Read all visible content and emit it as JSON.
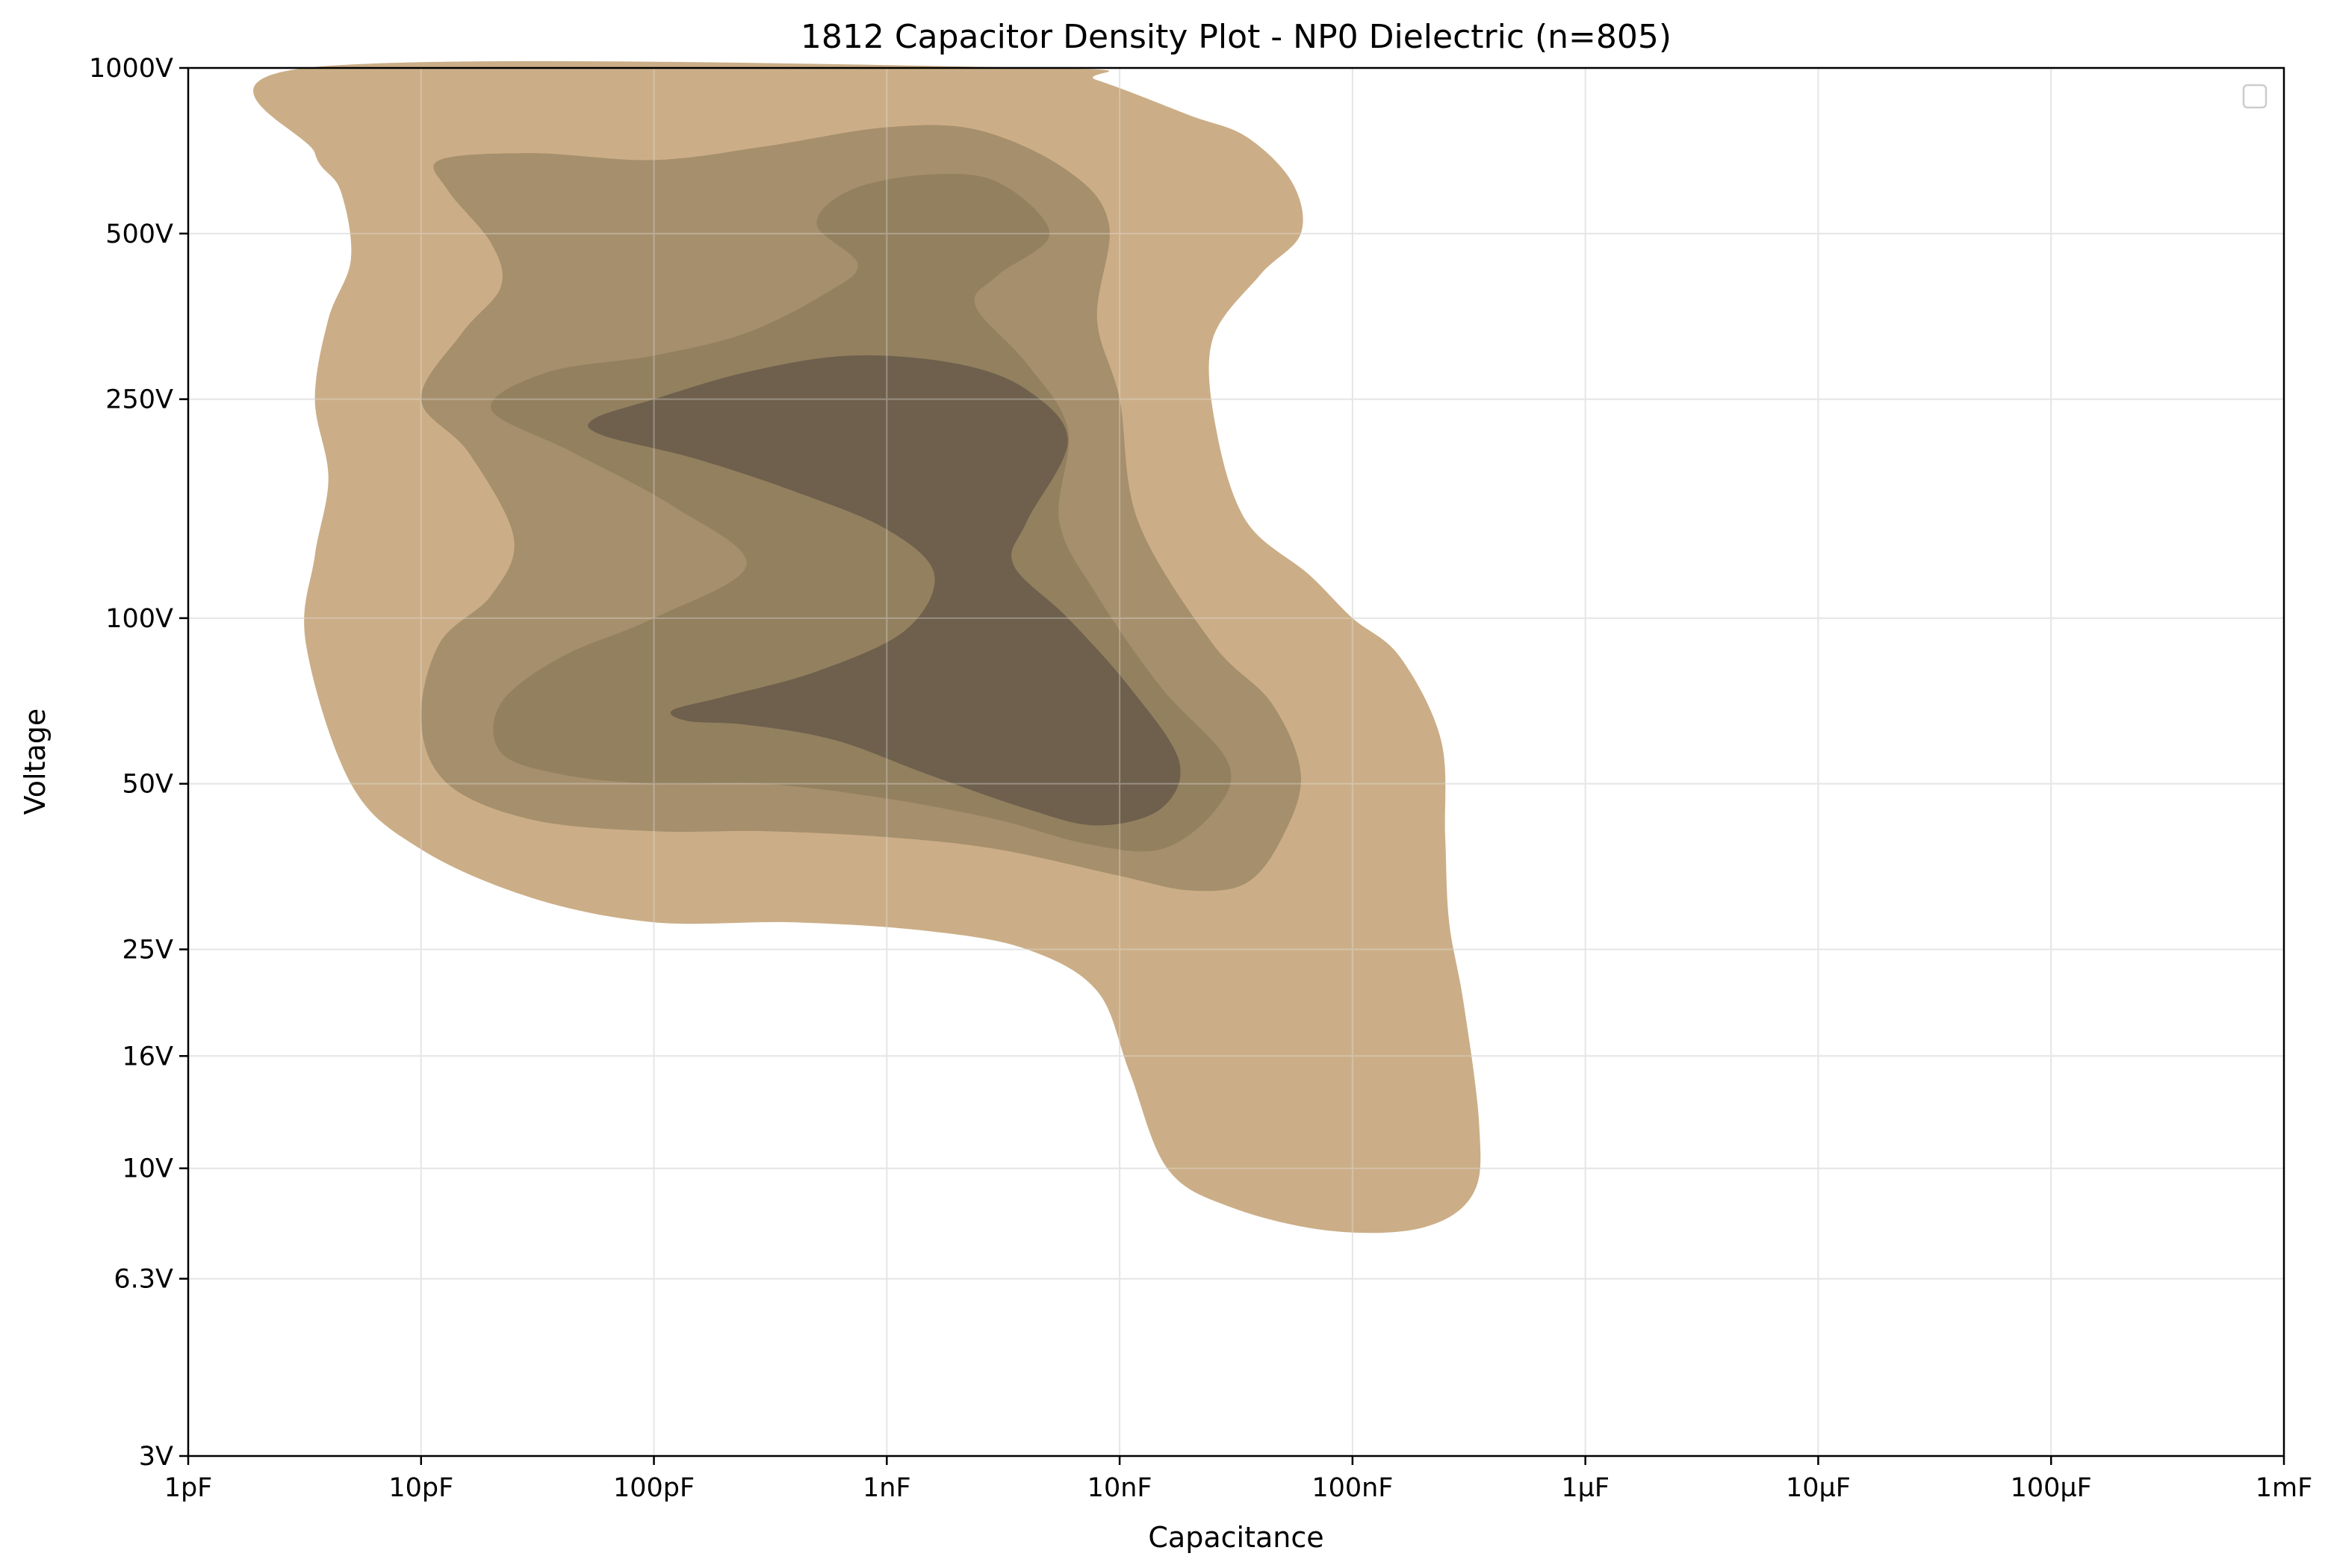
{
  "chart_data": {
    "type": "contour",
    "title": "1812 Capacitor Density Plot - NP0 Dielectric (n=805)",
    "xlabel": "Capacitance",
    "ylabel": "Voltage",
    "x_scale": "log",
    "y_scale": "log",
    "x_unit": "F",
    "y_unit": "V",
    "xlim": [
      1e-12,
      0.001
    ],
    "ylim": [
      3,
      1000
    ],
    "grid": true,
    "legend": "top-right (empty)",
    "x_ticks": [
      {
        "value": 1e-12,
        "label": "1pF"
      },
      {
        "value": 1e-11,
        "label": "10pF"
      },
      {
        "value": 1e-10,
        "label": "100pF"
      },
      {
        "value": 1e-09,
        "label": "1nF"
      },
      {
        "value": 1e-08,
        "label": "10nF"
      },
      {
        "value": 1e-07,
        "label": "100nF"
      },
      {
        "value": 1e-06,
        "label": "1µF"
      },
      {
        "value": 1e-05,
        "label": "10µF"
      },
      {
        "value": 0.0001,
        "label": "100µF"
      },
      {
        "value": 0.001,
        "label": "1mF"
      }
    ],
    "y_ticks": [
      {
        "value": 3,
        "label": "3V"
      },
      {
        "value": 6.3,
        "label": "6.3V"
      },
      {
        "value": 10,
        "label": "10V"
      },
      {
        "value": 16,
        "label": "16V"
      },
      {
        "value": 25,
        "label": "25V"
      },
      {
        "value": 50,
        "label": "50V"
      },
      {
        "value": 100,
        "label": "100V"
      },
      {
        "value": 250,
        "label": "250V"
      },
      {
        "value": 500,
        "label": "500V"
      },
      {
        "value": 1000,
        "label": "1000V"
      }
    ],
    "density_levels": [
      {
        "level": 1,
        "color": "#cbae87",
        "contour": [
          [
            3.2e-12,
            1000
          ],
          [
            3.5e-12,
            700
          ],
          [
            4.5e-12,
            600
          ],
          [
            5e-12,
            450
          ],
          [
            4e-12,
            350
          ],
          [
            3.5e-12,
            250
          ],
          [
            4e-12,
            180
          ],
          [
            3.5e-12,
            130
          ],
          [
            3.2e-12,
            90
          ],
          [
            5e-12,
            50
          ],
          [
            1e-11,
            38
          ],
          [
            3e-11,
            31
          ],
          [
            1e-10,
            28
          ],
          [
            4e-10,
            28
          ],
          [
            1.5e-09,
            27
          ],
          [
            4e-09,
            25
          ],
          [
            8e-09,
            21
          ],
          [
            1.1e-08,
            15
          ],
          [
            1.6e-08,
            10
          ],
          [
            3e-08,
            8.5
          ],
          [
            8e-08,
            7.7
          ],
          [
            2e-07,
            7.8
          ],
          [
            3.3e-07,
            9
          ],
          [
            3.5e-07,
            12
          ],
          [
            3e-07,
            20
          ],
          [
            2.6e-07,
            28
          ],
          [
            2.5e-07,
            40
          ],
          [
            2.4e-07,
            60
          ],
          [
            1.6e-07,
            85
          ],
          [
            1e-07,
            100
          ],
          [
            6.5e-08,
            120
          ],
          [
            3.5e-08,
            150
          ],
          [
            2.6e-08,
            220
          ],
          [
            2.5e-08,
            320
          ],
          [
            4e-08,
            420
          ],
          [
            6e-08,
            500
          ],
          [
            5.5e-08,
            620
          ],
          [
            3.5e-08,
            750
          ],
          [
            2e-08,
            820
          ],
          [
            8e-09,
            950
          ],
          [
            4.5e-09,
            1000
          ]
        ]
      },
      {
        "level": 2,
        "color": "#a68f6c",
        "contour": [
          [
            1.2e-11,
            680
          ],
          [
            3e-11,
            700
          ],
          [
            1e-10,
            680
          ],
          [
            3e-10,
            720
          ],
          [
            1e-09,
            780
          ],
          [
            2.5e-09,
            770
          ],
          [
            6e-09,
            650
          ],
          [
            9e-09,
            520
          ],
          [
            8e-09,
            350
          ],
          [
            1e-08,
            250
          ],
          [
            1.2e-08,
            150
          ],
          [
            2.5e-08,
            90
          ],
          [
            4.5e-08,
            70
          ],
          [
            6e-08,
            52
          ],
          [
            5e-08,
            40
          ],
          [
            3.5e-08,
            33
          ],
          [
            2e-08,
            32
          ],
          [
            1e-08,
            34
          ],
          [
            3e-09,
            38
          ],
          [
            1e-09,
            40
          ],
          [
            3e-10,
            41
          ],
          [
            1e-10,
            41
          ],
          [
            3e-11,
            43
          ],
          [
            1.3e-11,
            50
          ],
          [
            1e-11,
            65
          ],
          [
            1.2e-11,
            90
          ],
          [
            2e-11,
            110
          ],
          [
            2.5e-11,
            140
          ],
          [
            1.6e-11,
            200
          ],
          [
            1e-11,
            250
          ],
          [
            1.5e-11,
            330
          ],
          [
            2.2e-11,
            400
          ],
          [
            2e-11,
            480
          ],
          [
            1.3e-11,
            600
          ]
        ]
      },
      {
        "level": 3,
        "color": "#93805f",
        "contour": [
          [
            7e-10,
            600
          ],
          [
            1.5e-09,
            640
          ],
          [
            3e-09,
            620
          ],
          [
            5e-09,
            500
          ],
          [
            3e-09,
            420
          ],
          [
            2.4e-09,
            370
          ],
          [
            4e-09,
            290
          ],
          [
            6e-09,
            220
          ],
          [
            5.5e-09,
            150
          ],
          [
            8e-09,
            110
          ],
          [
            1.5e-08,
            75
          ],
          [
            2.9e-08,
            55
          ],
          [
            2.6e-08,
            45
          ],
          [
            1.5e-08,
            38
          ],
          [
            7e-09,
            39
          ],
          [
            3e-09,
            43
          ],
          [
            1e-09,
            47
          ],
          [
            3e-10,
            50
          ],
          [
            1e-10,
            50
          ],
          [
            4e-11,
            52
          ],
          [
            2.2e-11,
            57
          ],
          [
            2.2e-11,
            70
          ],
          [
            4e-11,
            85
          ],
          [
            1e-10,
            100
          ],
          [
            2.5e-10,
            125
          ],
          [
            1.2e-10,
            160
          ],
          [
            4.5e-11,
            200
          ],
          [
            2e-11,
            240
          ],
          [
            3.5e-11,
            280
          ],
          [
            1e-10,
            300
          ],
          [
            2.5e-10,
            330
          ],
          [
            5.5e-10,
            390
          ],
          [
            7.5e-10,
            440
          ],
          [
            5e-10,
            520
          ]
        ]
      },
      {
        "level": 4,
        "color": "#6e604d",
        "contour": [
          [
            5.5e-11,
            230
          ],
          [
            1e-10,
            250
          ],
          [
            2.5e-10,
            280
          ],
          [
            7e-10,
            300
          ],
          [
            2e-09,
            290
          ],
          [
            4e-09,
            260
          ],
          [
            6e-09,
            210
          ],
          [
            4e-09,
            150
          ],
          [
            3.5e-09,
            125
          ],
          [
            6e-09,
            100
          ],
          [
            1.1e-08,
            75
          ],
          [
            1.8e-08,
            55
          ],
          [
            1.5e-08,
            45
          ],
          [
            8e-09,
            42
          ],
          [
            4e-09,
            45
          ],
          [
            1.5e-09,
            52
          ],
          [
            6e-10,
            60
          ],
          [
            2.5e-10,
            64
          ],
          [
            1.4e-10,
            65
          ],
          [
            1.2e-10,
            68
          ],
          [
            2e-10,
            72
          ],
          [
            5e-10,
            80
          ],
          [
            1.2e-09,
            95
          ],
          [
            1.6e-09,
            120
          ],
          [
            1e-09,
            145
          ],
          [
            4e-10,
            170
          ],
          [
            1.5e-10,
            195
          ],
          [
            6e-11,
            215
          ]
        ]
      }
    ]
  },
  "colors": {
    "axis": "#000000",
    "grid": "#e6e6e6",
    "legend_border": "#cccccc"
  }
}
